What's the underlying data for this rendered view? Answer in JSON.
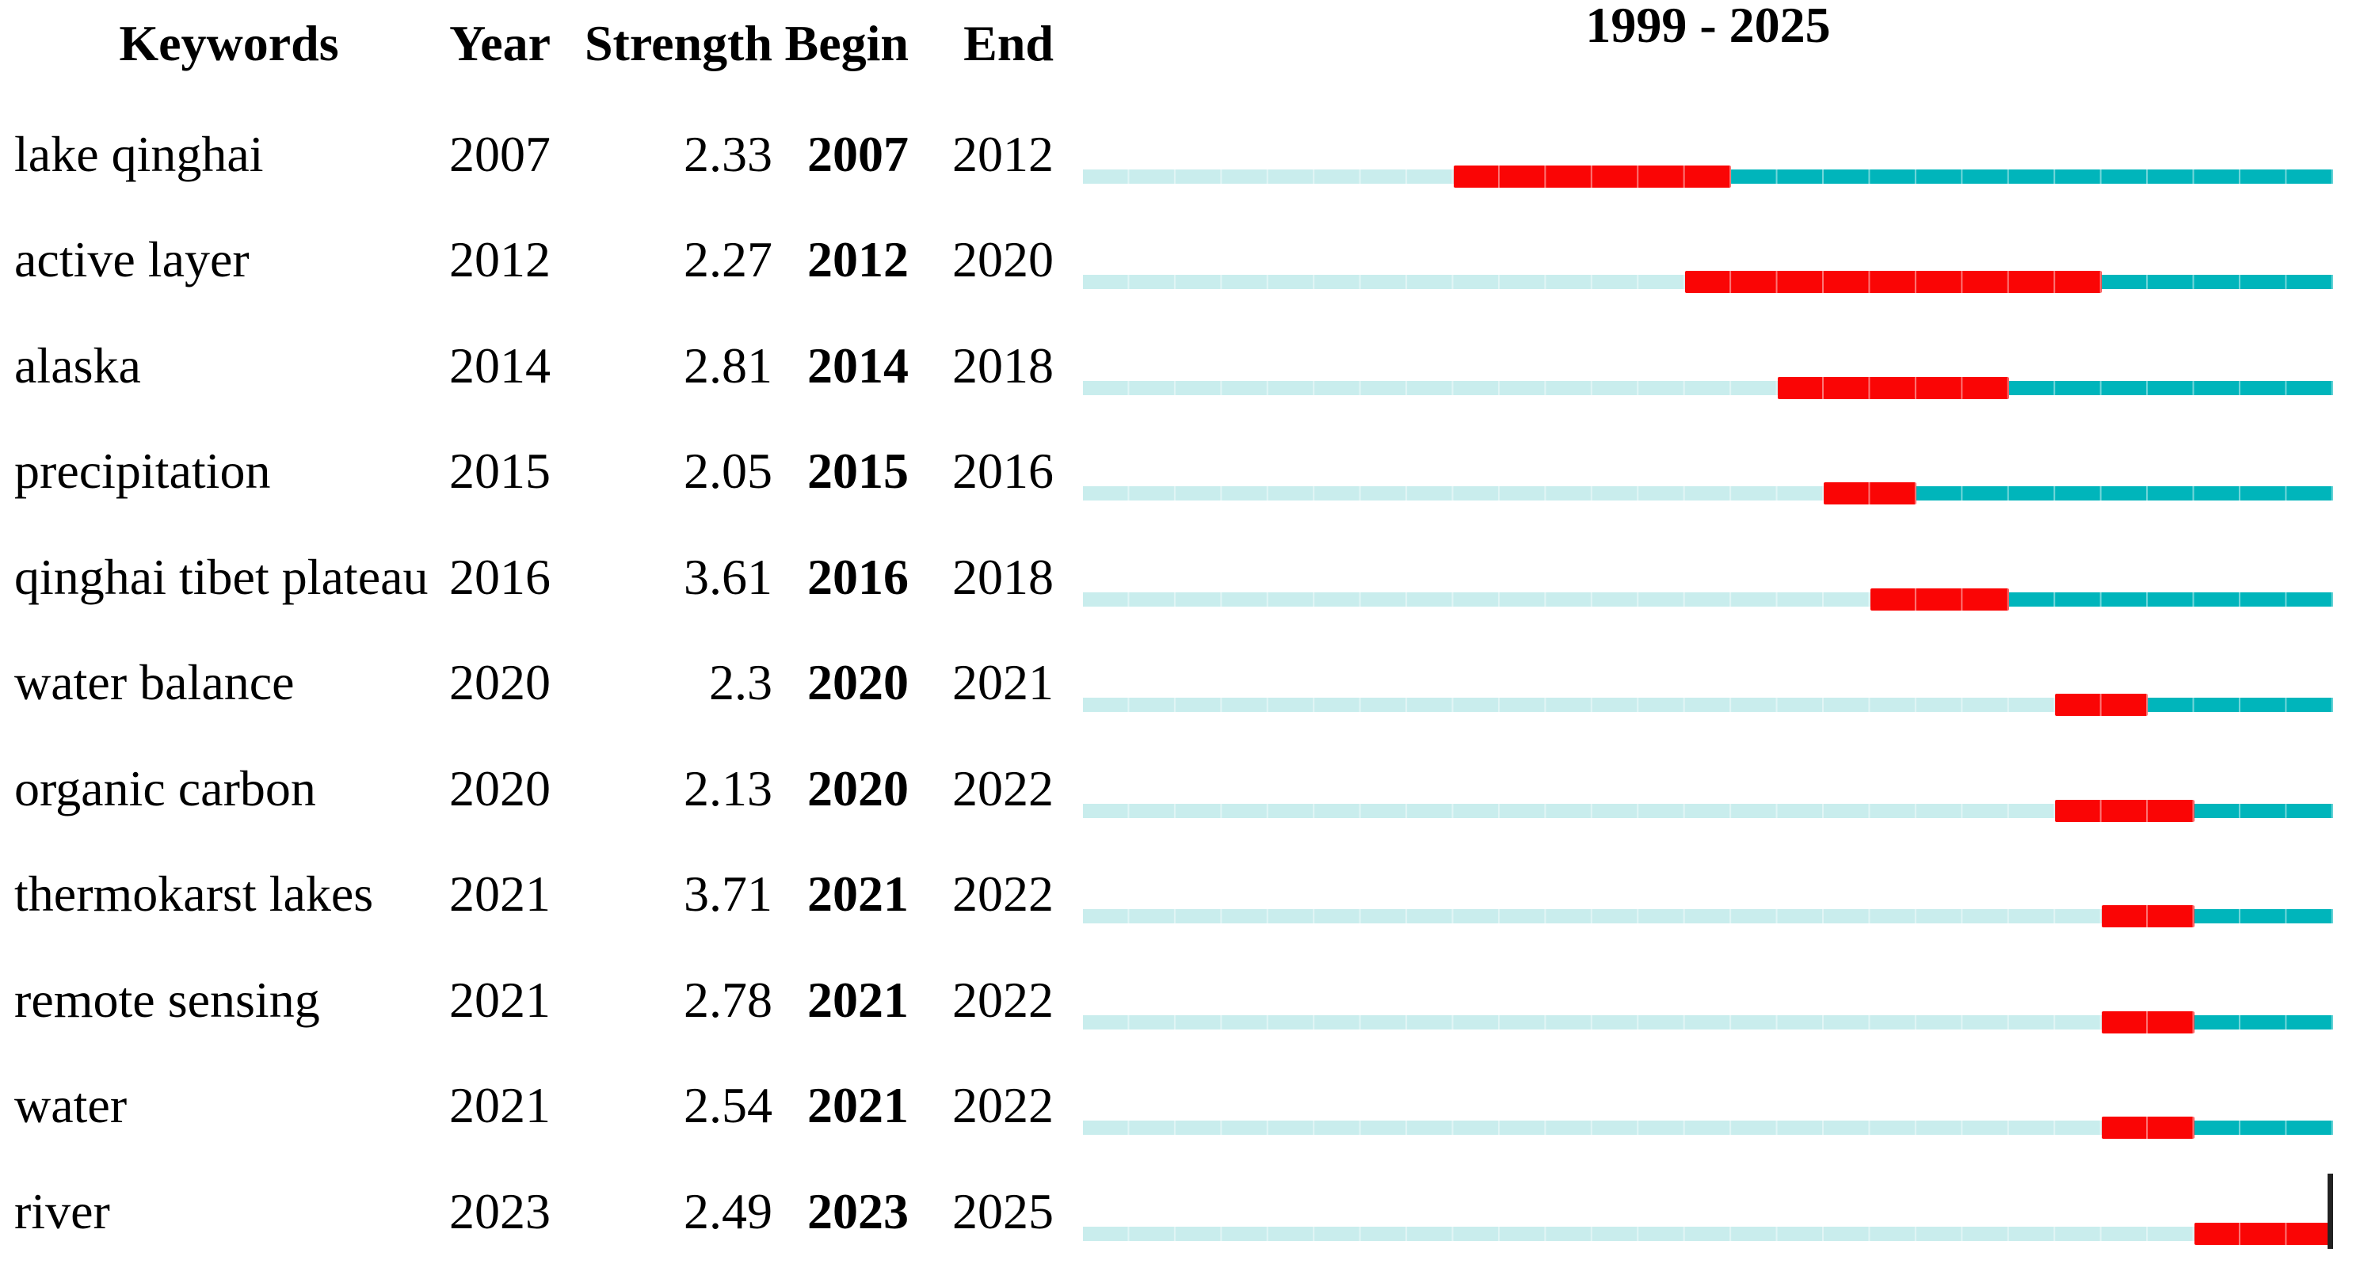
{
  "chart_data": {
    "type": "burst-timeline",
    "title": "1999 - 2025",
    "header": {
      "keywords": "Keywords",
      "year": "Year",
      "strength": "Strength",
      "begin": "Begin",
      "end": "End"
    },
    "timeline": {
      "start_year": 1999,
      "end_year": 2025,
      "label": "1999 - 2025"
    },
    "colors": {
      "pre_burst": "#c9eded",
      "burst": "#fa0505",
      "post_burst": "#00b5bb",
      "end_marker": "#222222"
    },
    "rows": [
      {
        "keyword": "lake qinghai",
        "year": "2007",
        "strength": "2.33",
        "begin": 2007,
        "end": 2012
      },
      {
        "keyword": "active layer",
        "year": "2012",
        "strength": "2.27",
        "begin": 2012,
        "end": 2020
      },
      {
        "keyword": "alaska",
        "year": "2014",
        "strength": "2.81",
        "begin": 2014,
        "end": 2018
      },
      {
        "keyword": "precipitation",
        "year": "2015",
        "strength": "2.05",
        "begin": 2015,
        "end": 2016
      },
      {
        "keyword": "qinghai tibet plateau",
        "year": "2016",
        "strength": "3.61",
        "begin": 2016,
        "end": 2018
      },
      {
        "keyword": "water balance",
        "year": "2020",
        "strength": "2.3",
        "begin": 2020,
        "end": 2021
      },
      {
        "keyword": "organic carbon",
        "year": "2020",
        "strength": "2.13",
        "begin": 2020,
        "end": 2022
      },
      {
        "keyword": "thermokarst lakes",
        "year": "2021",
        "strength": "3.71",
        "begin": 2021,
        "end": 2022
      },
      {
        "keyword": "remote sensing",
        "year": "2021",
        "strength": "2.78",
        "begin": 2021,
        "end": 2022
      },
      {
        "keyword": "water",
        "year": "2021",
        "strength": "2.54",
        "begin": 2021,
        "end": 2022
      },
      {
        "keyword": "river",
        "year": "2023",
        "strength": "2.49",
        "begin": 2023,
        "end": 2025
      }
    ]
  }
}
